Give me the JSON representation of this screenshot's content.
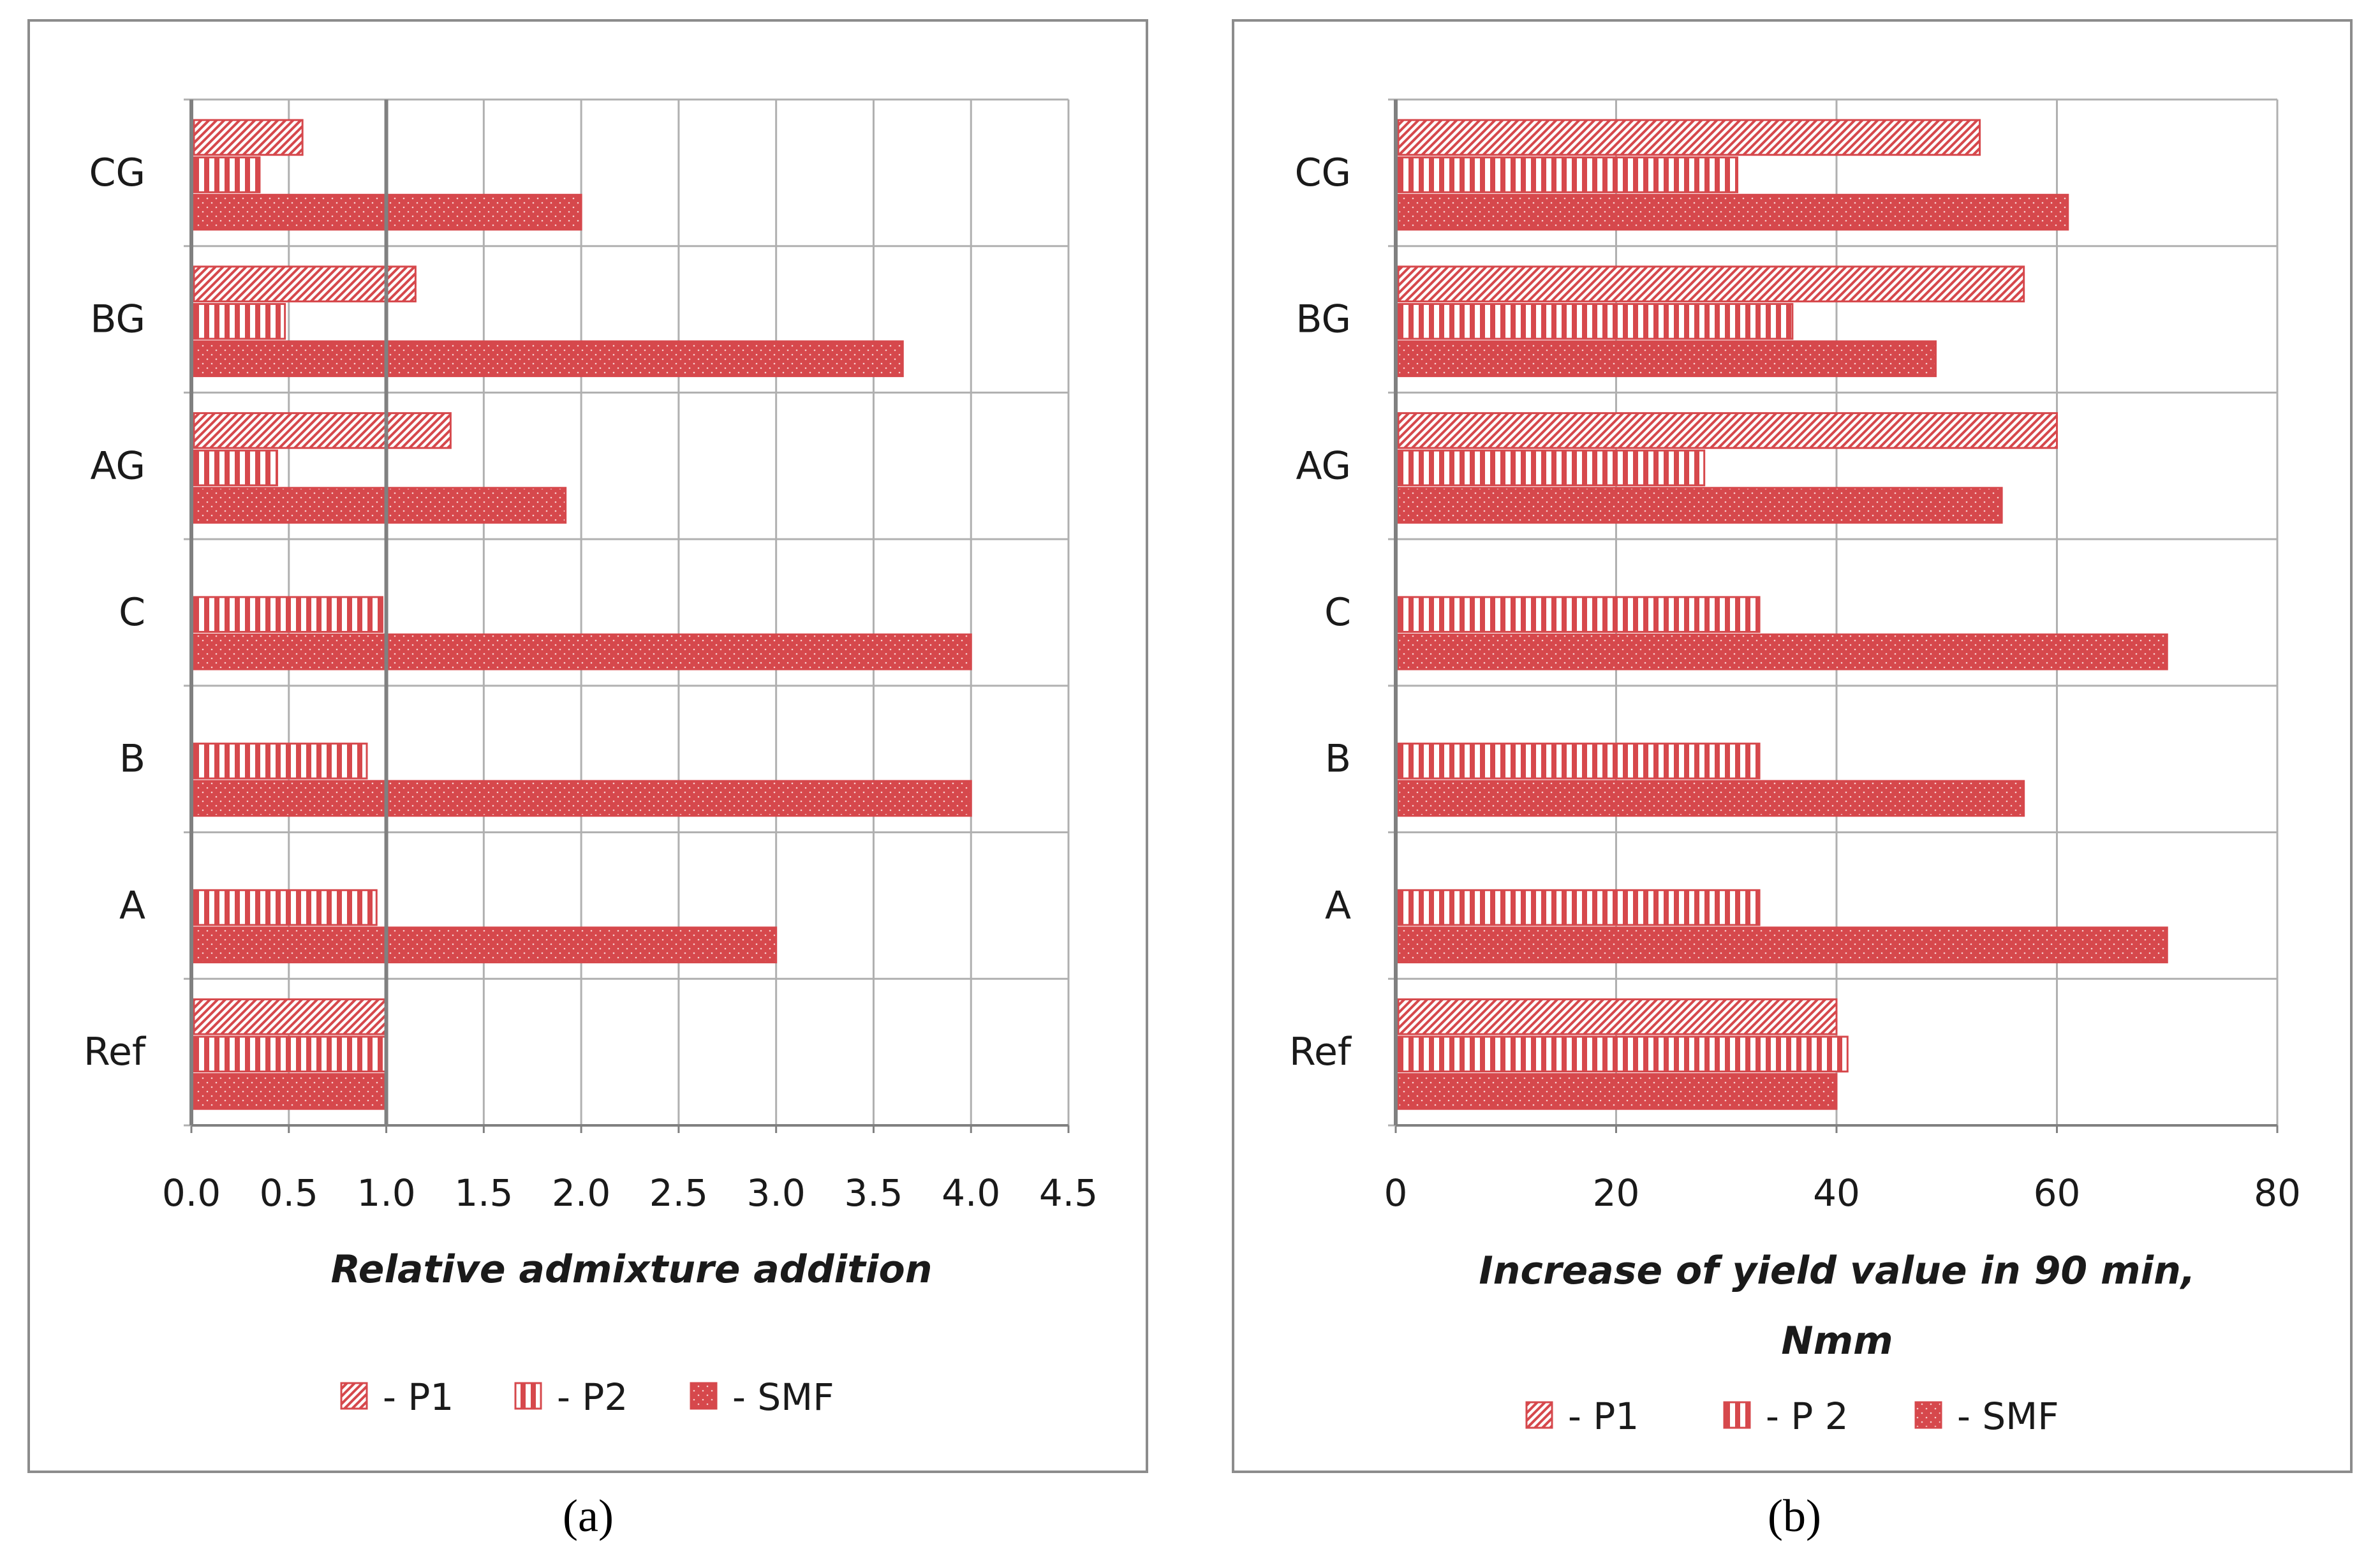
{
  "colors": {
    "bar": "#d6484c",
    "grid": "#b0b0b0",
    "axis": "#808080",
    "frame": "#8c8c8c"
  },
  "legend": [
    {
      "key": "P1",
      "label": "- P1",
      "pattern": "diagonal"
    },
    {
      "key": "P2",
      "label": "- P2",
      "pattern": "vertical"
    },
    {
      "key": "SMF",
      "label": "- SMF",
      "pattern": "dotted"
    }
  ],
  "legend_b": [
    "- P1",
    "- P 2",
    "- SMF"
  ],
  "chart_data": [
    {
      "type": "bar",
      "orientation": "horizontal",
      "caption": "(a)",
      "xlabel": "Relative admixture addition",
      "categories": [
        "CG",
        "BG",
        "AG",
        "C",
        "B",
        "A",
        "Ref"
      ],
      "xlim": [
        0,
        4.5
      ],
      "ticks": [
        "0.0",
        "0.5",
        "1.0",
        "1.5",
        "2.0",
        "2.5",
        "3.0",
        "3.5",
        "4.0",
        "4.5"
      ],
      "reference_line": 1.0,
      "series": [
        {
          "name": "P1",
          "values": [
            0.57,
            1.15,
            1.33,
            null,
            null,
            null,
            1.0
          ]
        },
        {
          "name": "P2",
          "values": [
            0.35,
            0.48,
            0.44,
            0.98,
            0.9,
            0.95,
            1.0
          ]
        },
        {
          "name": "SMF",
          "values": [
            2.0,
            3.65,
            1.92,
            4.0,
            4.0,
            3.0,
            1.0
          ]
        }
      ]
    },
    {
      "type": "bar",
      "orientation": "horizontal",
      "caption": "(b)",
      "xlabel_lines": [
        "Increase of yield value in 90 min,",
        "Nmm"
      ],
      "categories": [
        "CG",
        "BG",
        "AG",
        "C",
        "B",
        "A",
        "Ref"
      ],
      "xlim": [
        0,
        80
      ],
      "ticks": [
        "0",
        "20",
        "40",
        "60",
        "80"
      ],
      "series": [
        {
          "name": "P1",
          "values": [
            53,
            57,
            60,
            null,
            null,
            null,
            40
          ]
        },
        {
          "name": "P2",
          "values": [
            31,
            36,
            28,
            33,
            33,
            33,
            41
          ]
        },
        {
          "name": "SMF",
          "values": [
            61,
            49,
            55,
            70,
            57,
            70,
            40
          ]
        }
      ]
    }
  ]
}
